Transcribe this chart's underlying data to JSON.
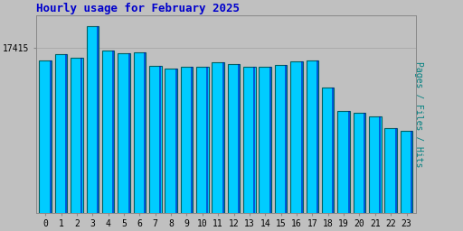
{
  "title": "Hourly usage for February 2025",
  "ylabel": "Pages / Files / Hits",
  "hours": [
    0,
    1,
    2,
    3,
    4,
    5,
    6,
    7,
    8,
    9,
    10,
    11,
    12,
    13,
    14,
    15,
    16,
    17,
    18,
    19,
    20,
    21,
    22,
    23
  ],
  "hits": [
    17200,
    17310,
    17250,
    17800,
    17380,
    17320,
    17340,
    17100,
    17060,
    17080,
    17080,
    17160,
    17140,
    17090,
    17090,
    17120,
    17180,
    17200,
    16720,
    16300,
    16270,
    16200,
    16000,
    15950
  ],
  "bar_face_color": "#00CCFF",
  "bar_edge_color": "#006060",
  "bar_stripe_color": "#0000BB",
  "background_color": "#C0C0C0",
  "plot_bg_color": "#C0C0C0",
  "title_color": "#0000CC",
  "ylabel_color": "#008080",
  "tick_label_color": "#000000",
  "ytick_val": 17415,
  "ytick_label": "17415",
  "ylim_min": 14500,
  "ylim_max": 18000,
  "grid_color": "#AAAAAA",
  "title_fontsize": 9,
  "tick_fontsize": 7
}
